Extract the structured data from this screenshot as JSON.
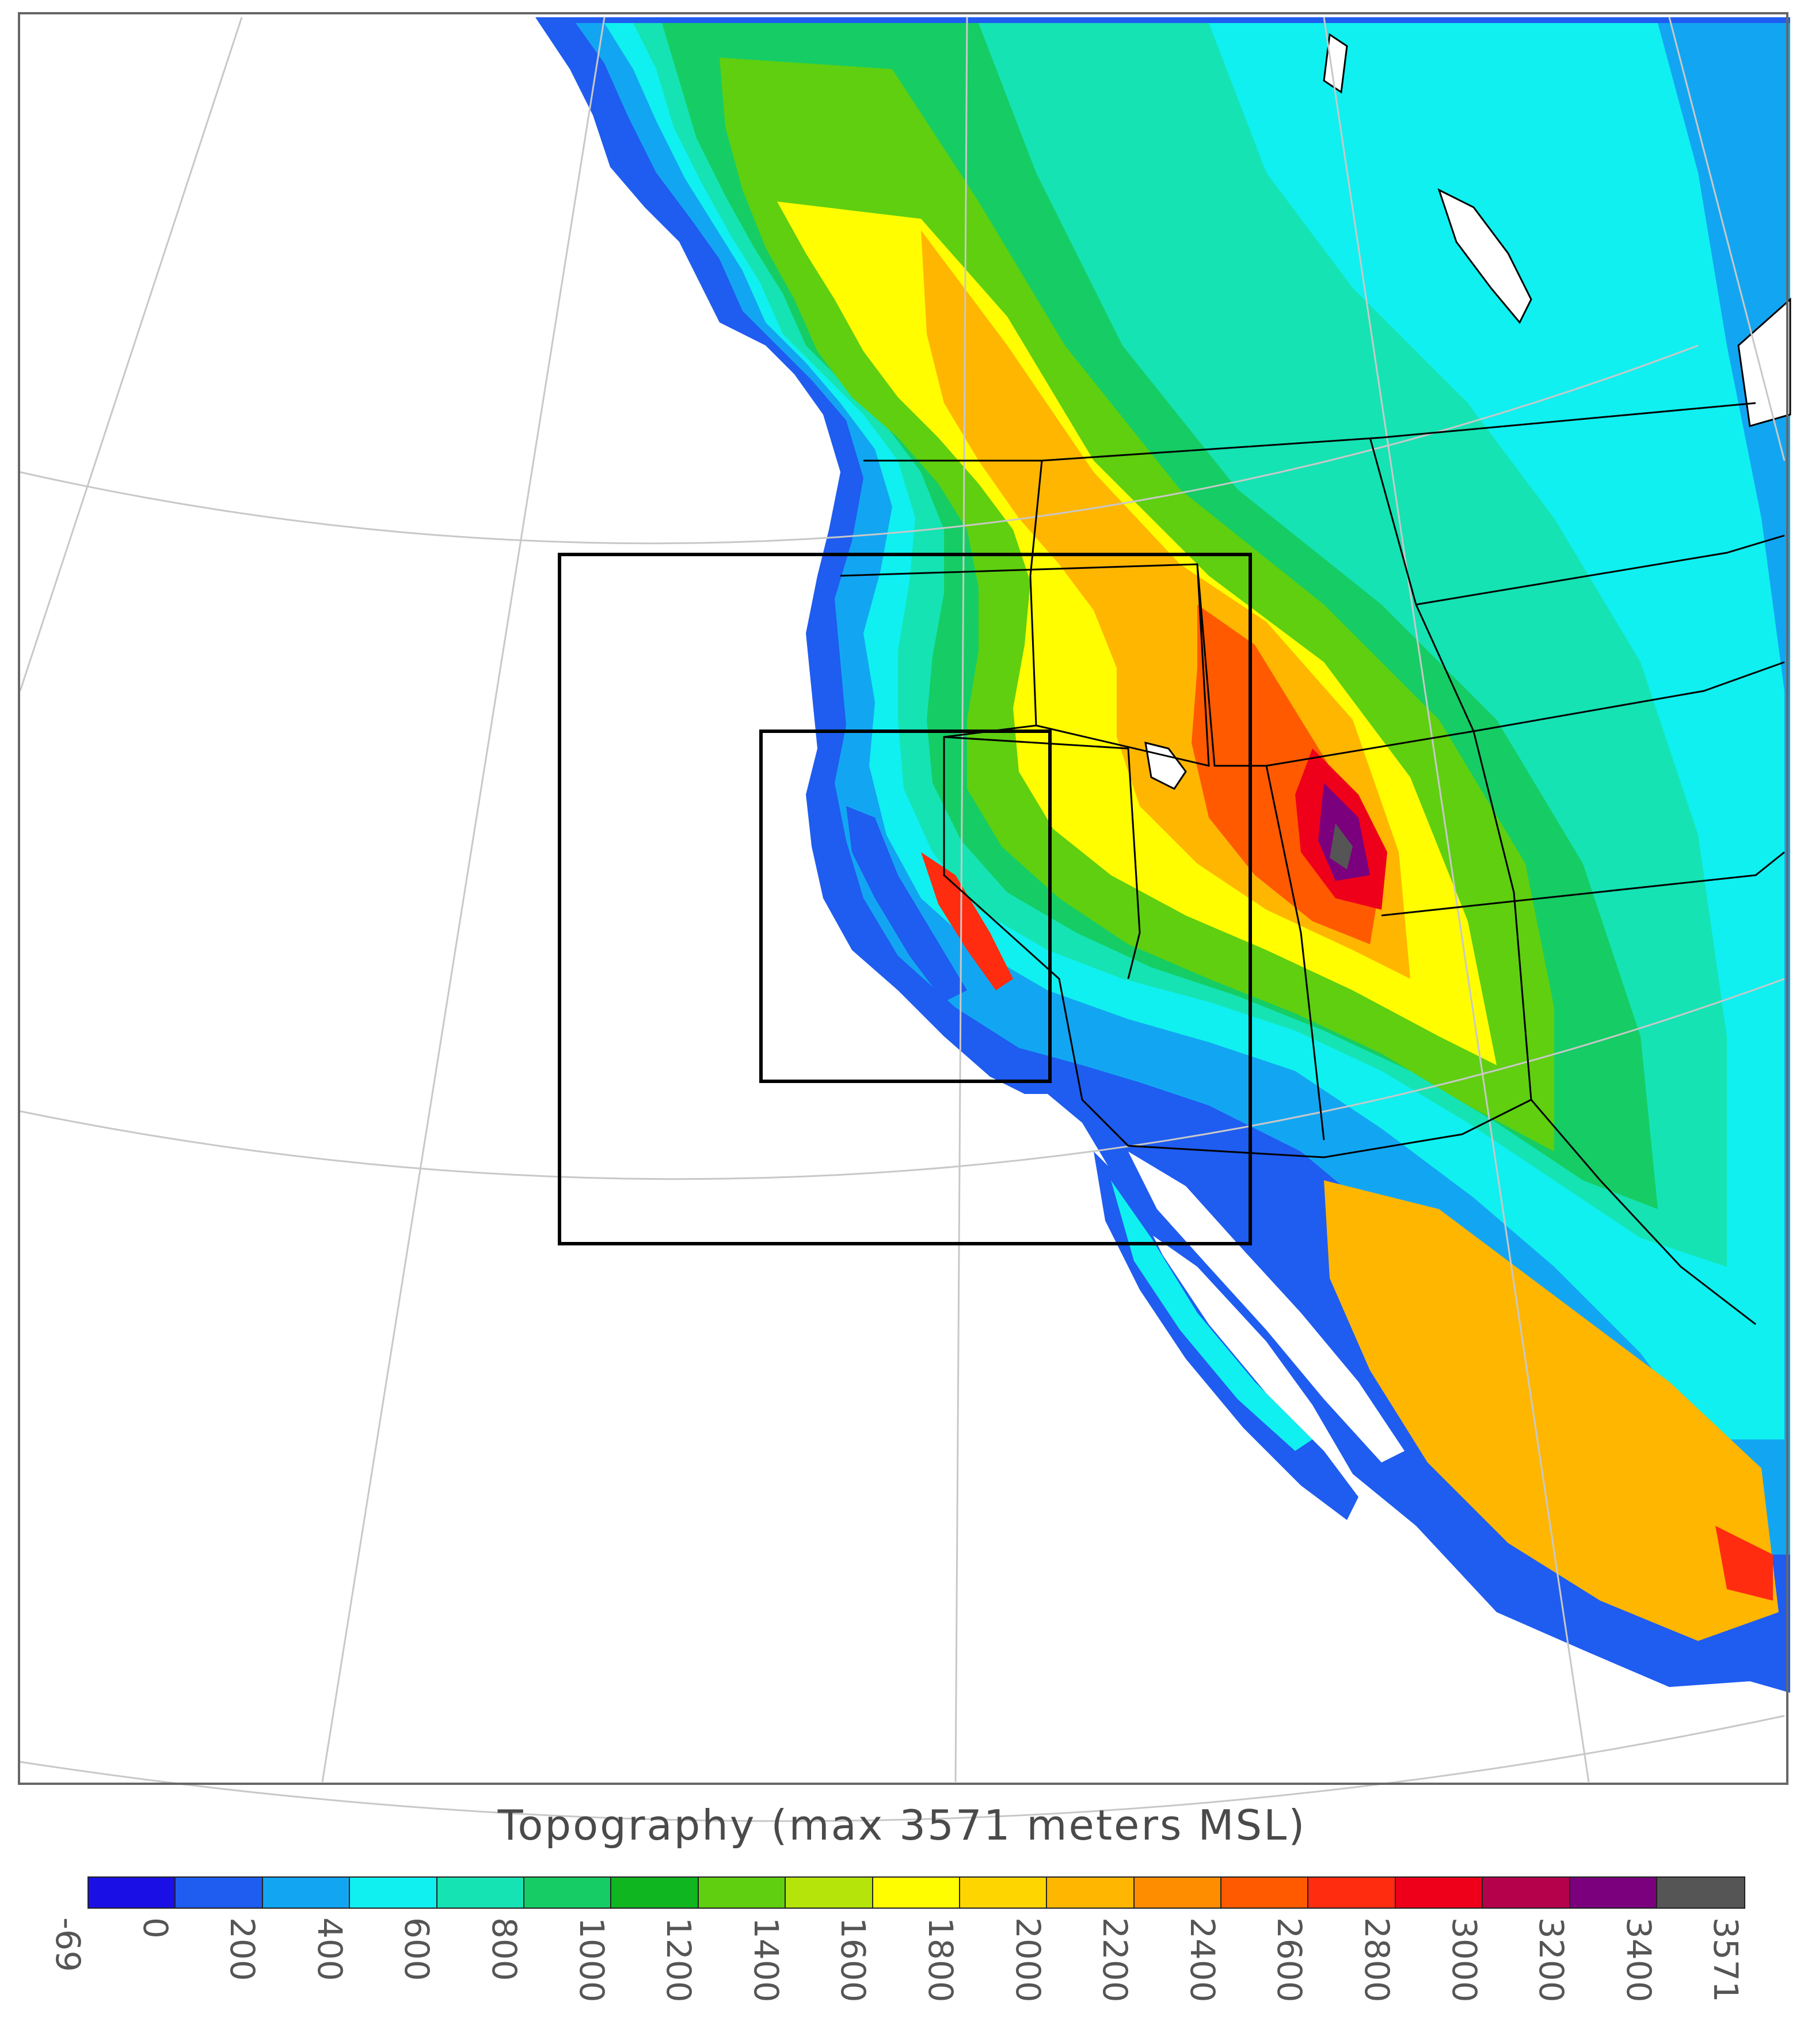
{
  "title": "Topography (max 3571 meters MSL)",
  "colorbar": {
    "labels": [
      "-69",
      "0",
      "200",
      "400",
      "600",
      "800",
      "1000",
      "1200",
      "1400",
      "1600",
      "1800",
      "2000",
      "2200",
      "2400",
      "2600",
      "2800",
      "3000",
      "3200",
      "3400",
      "3571"
    ],
    "colors": [
      "#1a10e6",
      "#1f5cf0",
      "#12a6f2",
      "#10f0f0",
      "#15e3b3",
      "#15cd64",
      "#10b61f",
      "#5fcf10",
      "#b4e40a",
      "#fffd00",
      "#ffd500",
      "#ffb600",
      "#ff8d00",
      "#ff5a00",
      "#ff2c10",
      "#ef001a",
      "#b5004c",
      "#7a007e",
      "#555555"
    ]
  },
  "map": {
    "projection": "polar stereographic",
    "domains": [
      "outer-domain",
      "inner-domain"
    ],
    "colors": {
      "ocean": "#ffffff",
      "grid": "#c8c8c8",
      "boundary": "#000000"
    }
  }
}
